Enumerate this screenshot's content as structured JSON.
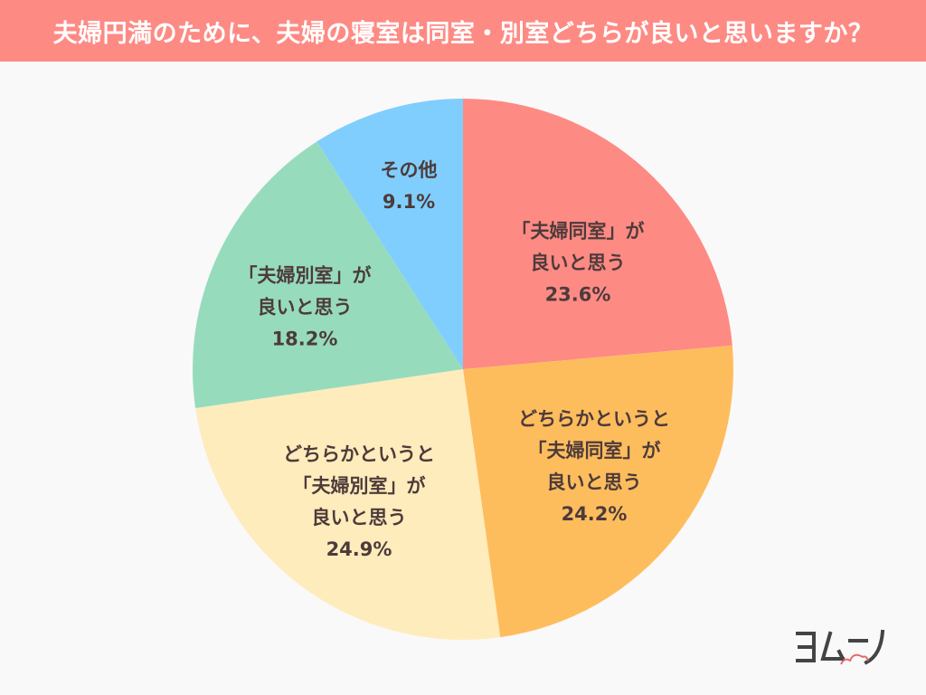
{
  "header": {
    "title": "夫婦円満のために、夫婦の寝室は同室・別室どちらが良いと思いますか？"
  },
  "logo": {
    "text": "ヨムーノ"
  },
  "colors": {
    "title_bg": "#fe8a84",
    "title_text": "#ffffff",
    "label_text": "#4d3b3b",
    "background": "#f9f9f9"
  },
  "chart_data": {
    "type": "pie",
    "title": "夫婦円満のために、夫婦の寝室は同室・別室どちらが良いと思いますか？",
    "start_angle": "12 o'clock, clockwise",
    "categories": [
      "「夫婦同室」が良いと思う",
      "どちらかというと「夫婦同室」が良いと思う",
      "どちらかというと「夫婦別室」が良いと思う",
      "「夫婦別室」が良いと思う",
      "その他"
    ],
    "values": [
      23.6,
      24.2,
      24.9,
      18.2,
      9.1
    ],
    "unit": "%",
    "colors": [
      "#fe8a84",
      "#febd5d",
      "#feecbc",
      "#97dbbd",
      "#80cefe"
    ],
    "legend": "none (labels inside slices)"
  },
  "labels": [
    {
      "lines": [
        "「夫婦同室」が",
        "良いと思う"
      ],
      "pct": "23.6%"
    },
    {
      "lines": [
        "どちらかというと",
        "「夫婦同室」が",
        "良いと思う"
      ],
      "pct": "24.2%"
    },
    {
      "lines": [
        "どちらかというと",
        "「夫婦別室」が",
        "良いと思う"
      ],
      "pct": "24.9%"
    },
    {
      "lines": [
        "「夫婦別室」が",
        "良いと思う"
      ],
      "pct": "18.2%"
    },
    {
      "lines": [
        "その他"
      ],
      "pct": "9.1%"
    }
  ]
}
